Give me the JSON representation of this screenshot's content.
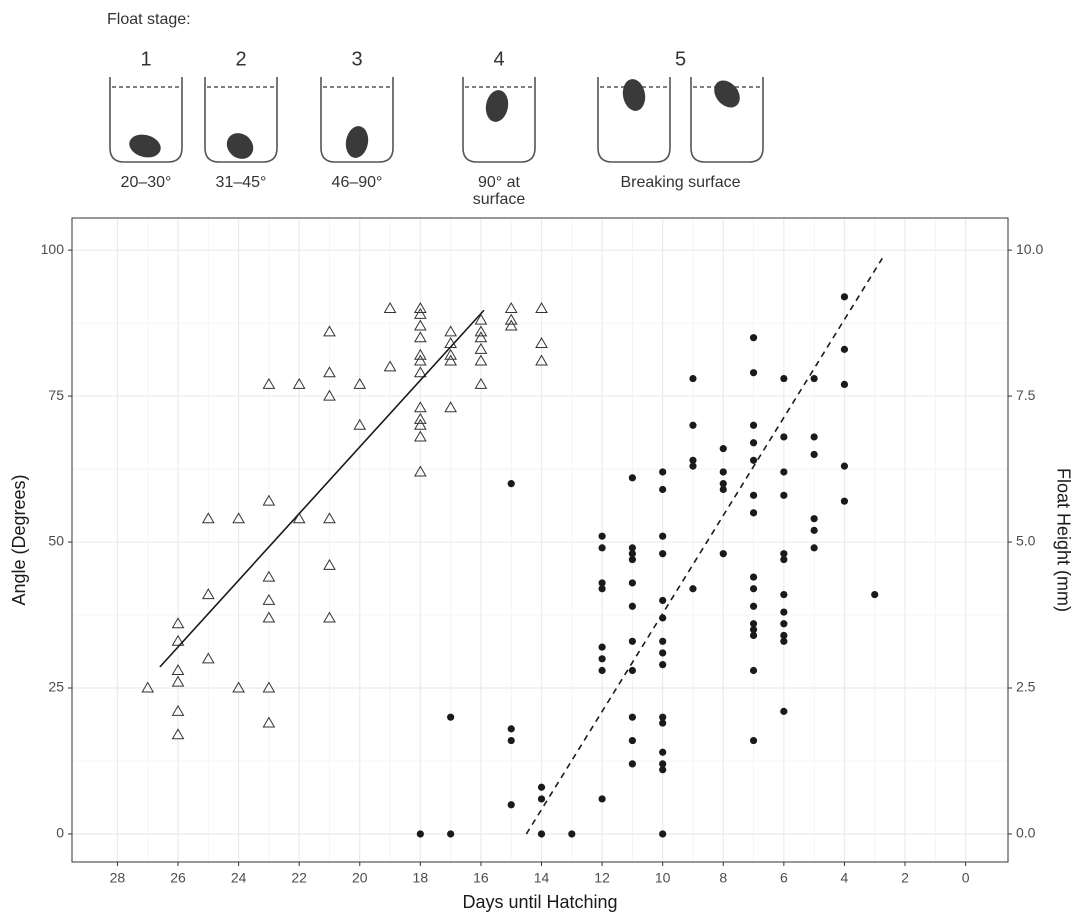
{
  "header": {
    "title": "Float stage:",
    "stages": [
      {
        "number": "1",
        "caption": [
          "20–30°"
        ]
      },
      {
        "number": "2",
        "caption": [
          "31–45°"
        ]
      },
      {
        "number": "3",
        "caption": [
          "46–90°"
        ]
      },
      {
        "number": "4",
        "caption": [
          "90° at",
          "surface"
        ]
      },
      {
        "number": "5",
        "caption": [
          "Breaking surface"
        ]
      }
    ]
  },
  "chart_data": {
    "type": "scatter",
    "xlabel": "Days until Hatching",
    "ylabel": "Angle (Degrees)",
    "y2label": "Float Height (mm)",
    "xlim": [
      29.5,
      -1.4
    ],
    "xticks": [
      28,
      26,
      24,
      22,
      20,
      18,
      16,
      14,
      12,
      10,
      8,
      6,
      4,
      2,
      0
    ],
    "ylim": [
      -4.8,
      105.5
    ],
    "yticks": [
      0,
      25,
      50,
      75,
      100
    ],
    "y2lim": [
      -0.48,
      10.55
    ],
    "y2ticks": [
      {
        "value": 0,
        "label": "0.0"
      },
      {
        "value": 2.5,
        "label": "2.5"
      },
      {
        "value": 5,
        "label": "5.0"
      },
      {
        "value": 7.5,
        "label": "7.5"
      },
      {
        "value": 10,
        "label": "10.0"
      }
    ],
    "grid": true,
    "series": [
      {
        "marker": "triangle",
        "color": "#333333",
        "x": [
          27,
          26,
          26,
          26,
          26,
          26,
          26,
          25,
          25,
          25,
          24,
          24,
          23,
          23,
          23,
          23,
          23,
          23,
          23,
          22,
          22,
          21,
          21,
          21,
          21,
          21,
          21,
          20,
          20,
          19,
          19,
          18,
          18,
          18,
          18,
          18,
          18,
          18,
          18,
          18,
          18,
          18,
          18,
          17,
          17,
          17,
          17,
          17,
          16,
          16,
          16,
          16,
          16,
          16,
          15,
          15,
          15,
          14,
          14,
          14
        ],
        "values": [
          25,
          36,
          33,
          28,
          26,
          21,
          17,
          54,
          41,
          30,
          54,
          25,
          77,
          57,
          44,
          40,
          37,
          25,
          19,
          77,
          54,
          86,
          79,
          75,
          54,
          46,
          37,
          77,
          70,
          90,
          80,
          90,
          89,
          87,
          85,
          82,
          81,
          79,
          73,
          71,
          70,
          68,
          62,
          86,
          84,
          82,
          81,
          73,
          88,
          86,
          85,
          83,
          81,
          77,
          90,
          88,
          87,
          90,
          84,
          81
        ]
      },
      {
        "marker": "dot",
        "color": "#1a1a1a",
        "axis": "y2",
        "x": [
          18,
          17,
          17,
          15,
          15,
          15,
          15,
          14,
          14,
          14,
          13,
          12,
          12,
          12,
          12,
          12,
          12,
          12,
          12,
          11,
          11,
          11,
          11,
          11,
          11,
          11,
          11,
          11,
          11,
          11,
          10,
          10,
          10,
          10,
          10,
          10,
          10,
          10,
          10,
          10,
          10,
          10,
          10,
          10,
          10,
          9,
          9,
          9,
          9,
          9,
          8,
          8,
          8,
          8,
          8,
          7,
          7,
          7,
          7,
          7,
          7,
          7,
          7,
          7,
          7,
          7,
          7,
          7,
          7,
          7,
          6,
          6,
          6,
          6,
          6,
          6,
          6,
          6,
          6,
          6,
          6,
          6,
          5,
          5,
          5,
          5,
          5,
          5,
          4,
          4,
          4,
          4,
          4,
          3
        ],
        "values": [
          0,
          2.0,
          0,
          6.0,
          1.8,
          1.6,
          0.5,
          0.8,
          0.6,
          0,
          0,
          5.1,
          4.9,
          4.3,
          4.2,
          3.2,
          3.0,
          2.8,
          0.6,
          6.1,
          4.9,
          4.8,
          4.7,
          4.3,
          3.9,
          3.3,
          2.8,
          2.0,
          1.6,
          1.2,
          6.2,
          5.9,
          5.1,
          4.8,
          4.0,
          3.7,
          3.3,
          3.1,
          2.9,
          2.0,
          1.9,
          1.4,
          1.2,
          1.1,
          0,
          7.8,
          7.0,
          6.4,
          6.3,
          4.2,
          6.6,
          6.2,
          6.0,
          5.9,
          4.8,
          8.5,
          7.9,
          7.0,
          6.7,
          6.4,
          5.8,
          5.5,
          4.4,
          4.2,
          3.9,
          3.6,
          3.5,
          3.4,
          2.8,
          1.6,
          7.8,
          6.8,
          6.2,
          5.8,
          4.8,
          4.7,
          4.1,
          3.8,
          3.6,
          3.4,
          3.3,
          2.1,
          7.8,
          6.8,
          6.5,
          5.4,
          5.2,
          4.9,
          9.2,
          8.3,
          7.7,
          6.3,
          5.7,
          4.1
        ]
      },
      {
        "marker": "solid-line",
        "color": "#1a1a1a",
        "x": [
          26.6,
          15.9
        ],
        "values": [
          28.6,
          89.7
        ]
      },
      {
        "marker": "dashed-line",
        "color": "#1a1a1a",
        "axis": "y2",
        "x": [
          14.5,
          2.75
        ],
        "values": [
          0,
          9.86
        ]
      }
    ]
  }
}
